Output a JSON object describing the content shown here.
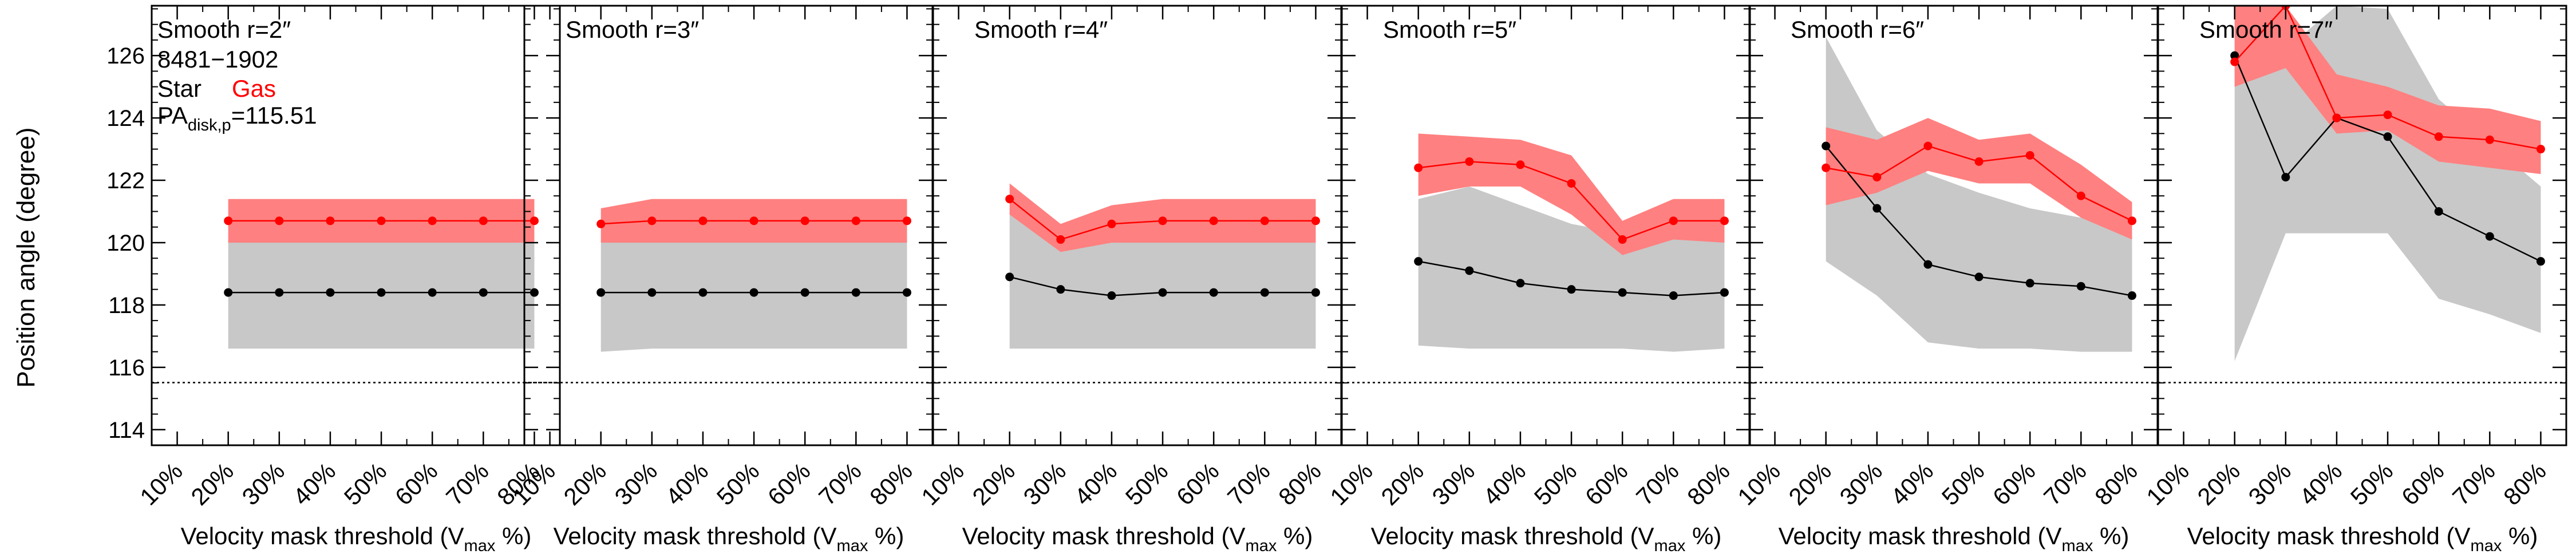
{
  "figure": {
    "ylabel": "Position angle (degree)",
    "xlabel_prefix": "Velocity mask threshold (V",
    "xlabel_sub": "max",
    "xlabel_suffix": " %)",
    "galaxy_id": "8481−1902",
    "legend": {
      "star": "Star",
      "gas": "Gas"
    },
    "pa_label_main": "PA",
    "pa_label_sub": "disk,p",
    "pa_label_value": "=115.51",
    "pa_disk": 115.51
  },
  "colors": {
    "star_line": "#000000",
    "gas_line": "#ff0000",
    "star_band": "#c8c8c8",
    "gas_band": "#ff8080",
    "axis": "#000000"
  },
  "chart_data": [
    {
      "type": "line",
      "title": "Smooth r=2″",
      "x": [
        "10%",
        "20%",
        "30%",
        "40%",
        "50%",
        "60%",
        "70%",
        "80%"
      ],
      "xticks": [
        "10%",
        "20%",
        "30%",
        "40%",
        "50%",
        "60%",
        "70%",
        "80%"
      ],
      "xlim": [
        0.05,
        0.85
      ],
      "ylim": [
        113.5,
        127.6
      ],
      "yticks": [
        114,
        116,
        118,
        120,
        122,
        124,
        126
      ],
      "reference_line": 115.51,
      "series": [
        {
          "name": "Star",
          "x": [
            0.2,
            0.3,
            0.4,
            0.5,
            0.6,
            0.7,
            0.8
          ],
          "values": [
            118.4,
            118.4,
            118.4,
            118.4,
            118.4,
            118.4,
            118.4
          ],
          "lower": [
            116.6,
            116.6,
            116.6,
            116.6,
            116.6,
            116.6,
            116.6
          ],
          "upper": [
            120.1,
            120.1,
            120.1,
            120.1,
            120.1,
            120.1,
            120.1
          ]
        },
        {
          "name": "Gas",
          "x": [
            0.2,
            0.3,
            0.4,
            0.5,
            0.6,
            0.7,
            0.8
          ],
          "values": [
            120.7,
            120.7,
            120.7,
            120.7,
            120.7,
            120.7,
            120.7
          ],
          "lower": [
            120.0,
            120.0,
            120.0,
            120.0,
            120.0,
            120.0,
            120.0
          ],
          "upper": [
            121.4,
            121.4,
            121.4,
            121.4,
            121.4,
            121.4,
            121.4
          ]
        }
      ]
    },
    {
      "type": "line",
      "title": "Smooth r=3″",
      "x": [
        "10%",
        "20%",
        "30%",
        "40%",
        "50%",
        "60%",
        "70%",
        "80%"
      ],
      "xticks": [
        "10%",
        "20%",
        "30%",
        "40%",
        "50%",
        "60%",
        "70%",
        "80%"
      ],
      "xlim": [
        0.05,
        0.85
      ],
      "ylim": [
        113.5,
        127.6
      ],
      "yticks": [
        114,
        116,
        118,
        120,
        122,
        124,
        126
      ],
      "reference_line": 115.51,
      "series": [
        {
          "name": "Star",
          "x": [
            0.2,
            0.3,
            0.4,
            0.5,
            0.6,
            0.7,
            0.8
          ],
          "values": [
            118.4,
            118.4,
            118.4,
            118.4,
            118.4,
            118.4,
            118.4
          ],
          "lower": [
            116.5,
            116.6,
            116.6,
            116.6,
            116.6,
            116.6,
            116.6
          ],
          "upper": [
            120.1,
            120.1,
            120.1,
            120.1,
            120.1,
            120.1,
            120.1
          ]
        },
        {
          "name": "Gas",
          "x": [
            0.2,
            0.3,
            0.4,
            0.5,
            0.6,
            0.7,
            0.8
          ],
          "values": [
            120.6,
            120.7,
            120.7,
            120.7,
            120.7,
            120.7,
            120.7
          ],
          "lower": [
            120.0,
            120.0,
            120.0,
            120.0,
            120.0,
            120.0,
            120.0
          ],
          "upper": [
            121.1,
            121.4,
            121.4,
            121.4,
            121.4,
            121.4,
            121.4
          ]
        }
      ]
    },
    {
      "type": "line",
      "title": "Smooth r=4″",
      "x": [
        "10%",
        "20%",
        "30%",
        "40%",
        "50%",
        "60%",
        "70%",
        "80%"
      ],
      "xticks": [
        "10%",
        "20%",
        "30%",
        "40%",
        "50%",
        "60%",
        "70%",
        "80%"
      ],
      "xlim": [
        0.05,
        0.85
      ],
      "ylim": [
        113.5,
        127.6
      ],
      "yticks": [
        114,
        116,
        118,
        120,
        122,
        124,
        126
      ],
      "reference_line": 115.51,
      "series": [
        {
          "name": "Star",
          "x": [
            0.2,
            0.3,
            0.4,
            0.5,
            0.6,
            0.7,
            0.8
          ],
          "values": [
            118.9,
            118.5,
            118.3,
            118.4,
            118.4,
            118.4,
            118.4
          ],
          "lower": [
            116.6,
            116.6,
            116.6,
            116.6,
            116.6,
            116.6,
            116.6
          ],
          "upper": [
            121.0,
            120.1,
            120.1,
            120.1,
            120.1,
            120.1,
            120.1
          ]
        },
        {
          "name": "Gas",
          "x": [
            0.2,
            0.3,
            0.4,
            0.5,
            0.6,
            0.7,
            0.8
          ],
          "values": [
            121.4,
            120.1,
            120.6,
            120.7,
            120.7,
            120.7,
            120.7
          ],
          "lower": [
            120.9,
            119.7,
            120.0,
            120.0,
            120.0,
            120.0,
            120.0
          ],
          "upper": [
            121.9,
            120.6,
            121.2,
            121.4,
            121.4,
            121.4,
            121.4
          ]
        }
      ]
    },
    {
      "type": "line",
      "title": "Smooth r=5″",
      "x": [
        "10%",
        "20%",
        "30%",
        "40%",
        "50%",
        "60%",
        "70%",
        "80%"
      ],
      "xticks": [
        "10%",
        "20%",
        "30%",
        "40%",
        "50%",
        "60%",
        "70%",
        "80%"
      ],
      "xlim": [
        0.05,
        0.85
      ],
      "ylim": [
        113.5,
        127.6
      ],
      "yticks": [
        114,
        116,
        118,
        120,
        122,
        124,
        126
      ],
      "reference_line": 115.51,
      "series": [
        {
          "name": "Star",
          "x": [
            0.2,
            0.3,
            0.4,
            0.5,
            0.6,
            0.7,
            0.8
          ],
          "values": [
            119.4,
            119.1,
            118.7,
            118.5,
            118.4,
            118.3,
            118.4
          ],
          "lower": [
            116.7,
            116.6,
            116.6,
            116.6,
            116.6,
            116.5,
            116.6
          ],
          "upper": [
            121.4,
            121.8,
            121.2,
            120.6,
            120.3,
            120.1,
            120.1
          ]
        },
        {
          "name": "Gas",
          "x": [
            0.2,
            0.3,
            0.4,
            0.5,
            0.6,
            0.7,
            0.8
          ],
          "values": [
            122.4,
            122.6,
            122.5,
            121.9,
            120.1,
            120.7,
            120.7
          ],
          "lower": [
            121.5,
            121.8,
            121.8,
            120.9,
            119.6,
            120.1,
            120.0
          ],
          "upper": [
            123.5,
            123.4,
            123.3,
            122.8,
            120.7,
            121.4,
            121.4
          ]
        }
      ]
    },
    {
      "type": "line",
      "title": "Smooth r=6″",
      "x": [
        "10%",
        "20%",
        "30%",
        "40%",
        "50%",
        "60%",
        "70%",
        "80%"
      ],
      "xticks": [
        "10%",
        "20%",
        "30%",
        "40%",
        "50%",
        "60%",
        "70%",
        "80%"
      ],
      "xlim": [
        0.05,
        0.85
      ],
      "ylim": [
        113.5,
        127.6
      ],
      "yticks": [
        114,
        116,
        118,
        120,
        122,
        124,
        126
      ],
      "reference_line": 115.51,
      "series": [
        {
          "name": "Star",
          "x": [
            0.2,
            0.3,
            0.4,
            0.5,
            0.6,
            0.7,
            0.8
          ],
          "values": [
            123.1,
            121.1,
            119.3,
            118.9,
            118.7,
            118.6,
            118.3
          ],
          "lower": [
            119.4,
            118.3,
            116.8,
            116.6,
            116.6,
            116.5,
            116.5
          ],
          "upper": [
            126.6,
            123.6,
            122.2,
            121.6,
            121.1,
            120.8,
            120.5
          ]
        },
        {
          "name": "Gas",
          "x": [
            0.2,
            0.3,
            0.4,
            0.5,
            0.6,
            0.7,
            0.8
          ],
          "values": [
            122.4,
            122.1,
            123.1,
            122.6,
            122.8,
            121.5,
            120.7
          ],
          "lower": [
            121.2,
            121.6,
            122.3,
            121.9,
            121.9,
            120.8,
            120.1
          ],
          "upper": [
            123.7,
            123.3,
            124.0,
            123.3,
            123.5,
            122.5,
            121.3
          ]
        }
      ]
    },
    {
      "type": "line",
      "title": "Smooth r=7″",
      "x": [
        "10%",
        "20%",
        "30%",
        "40%",
        "50%",
        "60%",
        "70%",
        "80%"
      ],
      "xticks": [
        "10%",
        "20%",
        "30%",
        "40%",
        "50%",
        "60%",
        "70%",
        "80%"
      ],
      "xlim": [
        0.05,
        0.85
      ],
      "ylim": [
        113.5,
        127.6
      ],
      "yticks": [
        114,
        116,
        118,
        120,
        122,
        124,
        126
      ],
      "reference_line": 115.51,
      "series": [
        {
          "name": "Star",
          "x": [
            0.2,
            0.3,
            0.4,
            0.5,
            0.6,
            0.7,
            0.8
          ],
          "values": [
            126.0,
            122.1,
            124.0,
            123.4,
            121.0,
            120.2,
            119.4
          ],
          "lower": [
            116.2,
            120.3,
            120.3,
            120.3,
            118.2,
            117.7,
            117.1
          ],
          "upper": [
            127.6,
            126.2,
            127.6,
            127.5,
            124.6,
            123.2,
            121.8
          ]
        },
        {
          "name": "Gas",
          "x": [
            0.2,
            0.3,
            0.4,
            0.5,
            0.6,
            0.7,
            0.8
          ],
          "values": [
            125.8,
            127.6,
            124.0,
            124.1,
            123.4,
            123.3,
            123.0
          ],
          "lower": [
            125.0,
            125.6,
            123.5,
            123.6,
            122.6,
            122.4,
            122.2
          ],
          "upper": [
            127.6,
            127.6,
            125.4,
            125.0,
            124.4,
            124.3,
            123.9
          ]
        }
      ]
    }
  ]
}
